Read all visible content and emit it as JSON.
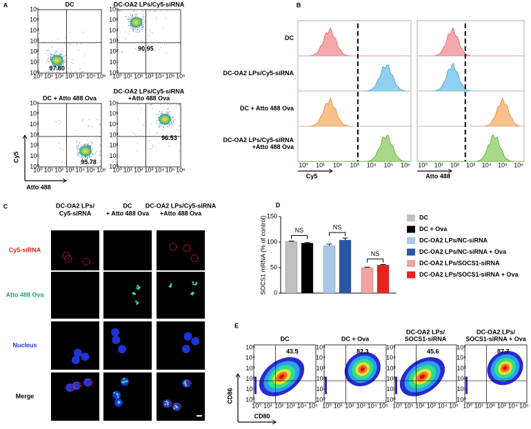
{
  "panel_a": {
    "label": "A",
    "plots": [
      {
        "title": [
          "DC"
        ],
        "value": "97.80"
      },
      {
        "title": [
          "DC-OA2 LPs/Cy5-siRNA"
        ],
        "value": "90.95"
      },
      {
        "title": [
          "DC + Atto 488 Ova"
        ],
        "value": "95.78"
      },
      {
        "title": [
          "DC-OA2 LPs/Cy5-siRNA",
          "+Atto 488 Ova"
        ],
        "value": "96.53"
      }
    ],
    "y_label": "Cy5",
    "x_label": "Atto 488",
    "ticks": [
      "10⁰",
      "10¹",
      "10²",
      "10³",
      "10⁴",
      "10⁵",
      "10⁶"
    ]
  },
  "panel_b": {
    "label": "B",
    "rows": [
      [
        "DC"
      ],
      [
        "DC-OA2 LPs/Cy5-siRNA"
      ],
      [
        "DC + Atto 488 Ova"
      ],
      [
        "DC-OA2 LPs/Cy5-siRNA",
        "+Atto 488 Ova"
      ]
    ],
    "x_labels": [
      "Cy5",
      "Atto 488"
    ],
    "ticks": [
      "10⁰",
      "10¹",
      "10²",
      "10³",
      "10⁴",
      "10⁵",
      "10⁶"
    ]
  },
  "panel_c": {
    "label": "C",
    "columns": [
      [
        "DC-OA2 LPs/",
        "Cy5-siRNA"
      ],
      [
        "DC",
        "+ Atto 488 Ova"
      ],
      [
        "DC-OA2 LPs/Cy5-siRNA",
        "+Atto 488 Ova"
      ]
    ],
    "rows": [
      "Cy5-siRNA",
      "Atto 488 Ova",
      "Nucleus",
      "Merge"
    ]
  },
  "chart_data": {
    "type": "bar",
    "panel_label": "D",
    "y_label": "SOCS1 mRNA (% of control)",
    "ylim": [
      0,
      150
    ],
    "yticks": [
      0,
      50,
      100,
      150
    ],
    "annotations": [
      "NS",
      "NS",
      "NS"
    ],
    "series": [
      {
        "name": "DC",
        "color": "#c0c0c0",
        "values": [
          101
        ],
        "errors": [
          1
        ]
      },
      {
        "name": "DC + Ova",
        "color": "#000000",
        "values": [
          98
        ],
        "errors": [
          1
        ]
      },
      {
        "name": "DC-OA2 LPs/NC-siRNA",
        "color": "#a9c8e8",
        "values": [
          93
        ],
        "errors": [
          3
        ]
      },
      {
        "name": "DC-OA2 LPs/NC-siRNA + Ova",
        "color": "#2a55a5",
        "values": [
          104
        ],
        "errors": [
          4
        ]
      },
      {
        "name": "DC-OA2 LPs/SOCS1-siRNA",
        "color": "#f2a3a3",
        "values": [
          50
        ],
        "errors": [
          1
        ]
      },
      {
        "name": "DC-OA2 LPs/SOCS1-siRNA + Ova",
        "color": "#e8231f",
        "values": [
          55
        ],
        "errors": [
          1
        ]
      }
    ]
  },
  "panel_e": {
    "label": "E",
    "plots": [
      {
        "title": [
          "DC"
        ],
        "value": "43.5"
      },
      {
        "title": [
          "DC + Ova"
        ],
        "value": "82.3"
      },
      {
        "title": [
          "DC-OA2 LPs/",
          "SOCS1-siRNA"
        ],
        "value": "45.6"
      },
      {
        "title": [
          "DC-OA2 LPs/",
          "SOCS1-siRNA + Ova"
        ],
        "value": "87.7"
      }
    ],
    "y_label": "CD86",
    "x_label": "CD80",
    "ticks": [
      "10⁰",
      "10¹",
      "10²",
      "10³",
      "10⁴",
      "10⁵"
    ]
  }
}
